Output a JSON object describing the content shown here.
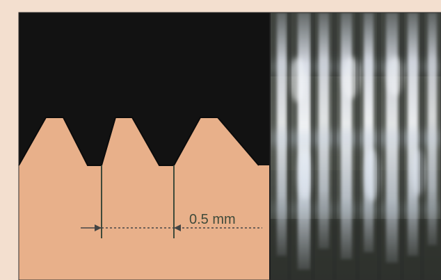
{
  "figure": {
    "measurement_label": "0.5 mm",
    "left_panel": {
      "subject": "sawtooth-thread-profile",
      "colors": {
        "background": "#f3dfcf",
        "cross_section": "#e8b08a",
        "dark_region": "#121212",
        "line": "#3f4a3a",
        "dashed_line": "#444444"
      }
    },
    "right_panel": {
      "subject": "photo-of-threaded-surface",
      "colors": {
        "dark_base": "#2b2d24",
        "light_streak": "#f4f6ff",
        "blue_tint": "#9bb8d9"
      }
    }
  }
}
